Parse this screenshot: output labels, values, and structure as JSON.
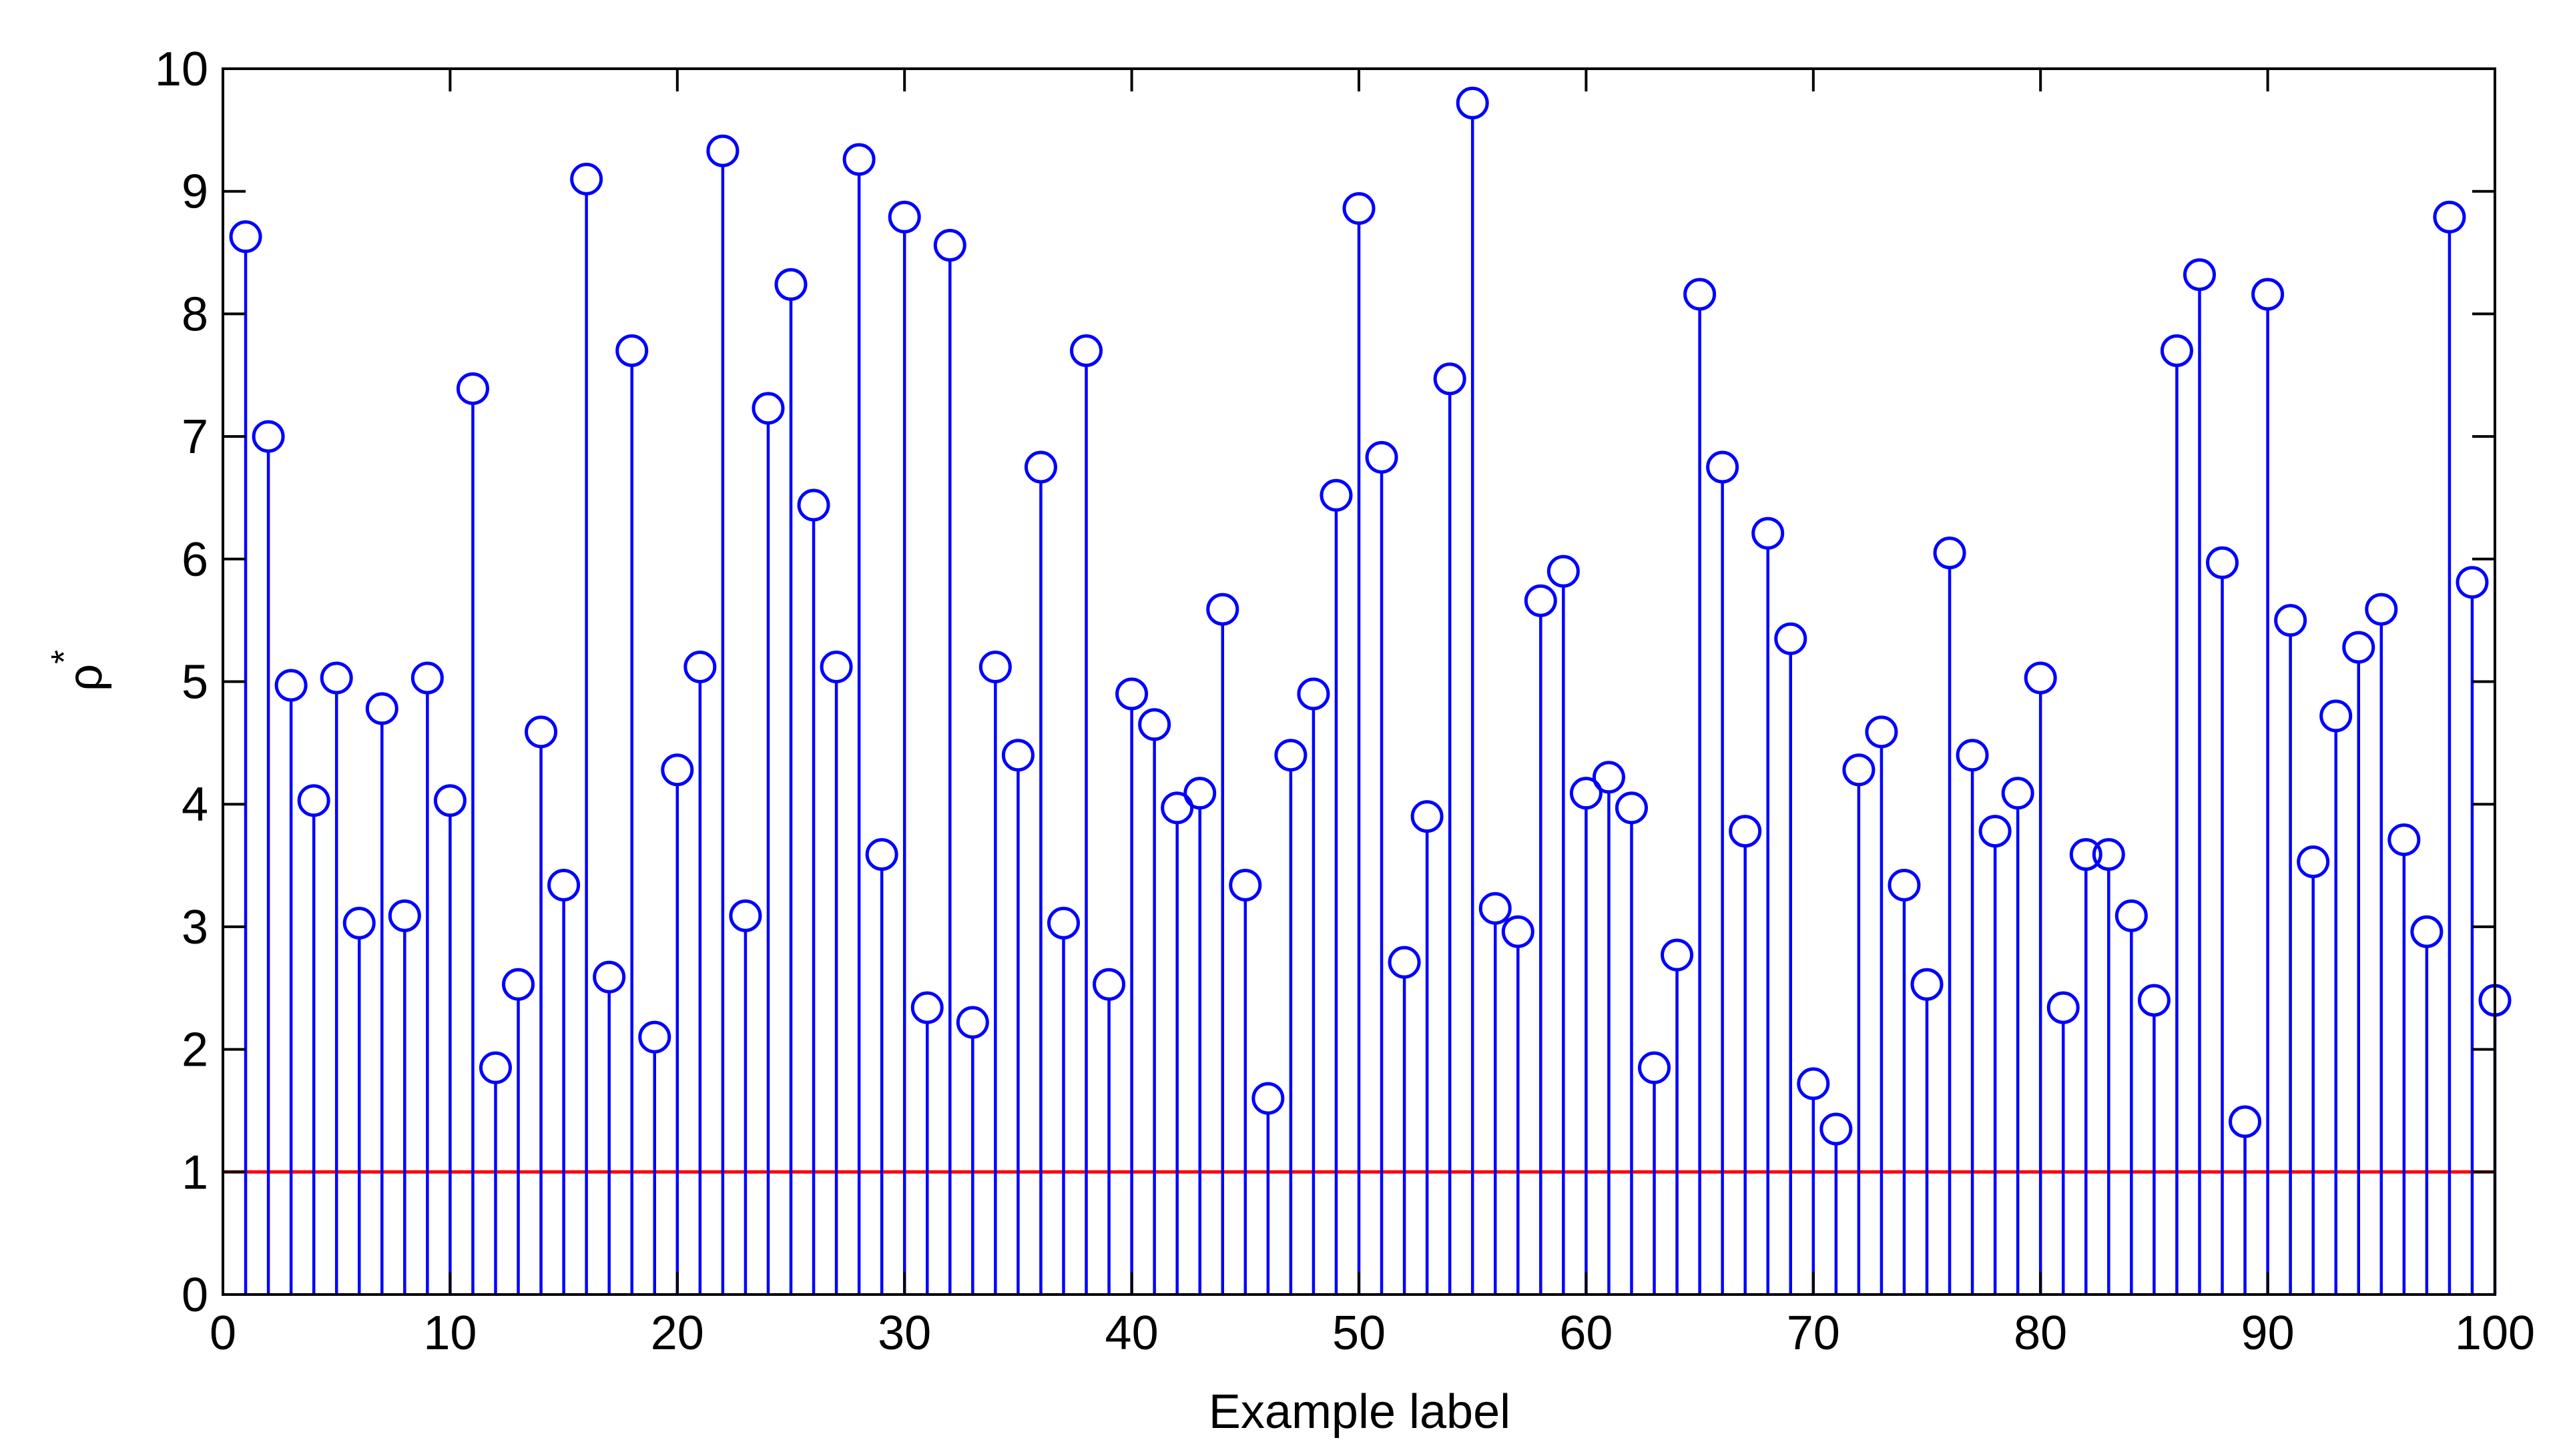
{
  "chart_data": {
    "type": "stem",
    "xlabel": "Example label",
    "ylabel": "ρ*",
    "xlim": [
      0,
      100
    ],
    "ylim": [
      0,
      10
    ],
    "xticks": [
      0,
      10,
      20,
      30,
      40,
      50,
      60,
      70,
      80,
      90,
      100
    ],
    "yticks": [
      0,
      1,
      2,
      3,
      4,
      5,
      6,
      7,
      8,
      9,
      10
    ],
    "grid": false,
    "colors": {
      "stem": "#0000ff",
      "reference_line": "#ff0000",
      "axes": "#000000"
    },
    "reference_line": {
      "y": 1
    },
    "series": [
      {
        "marker": "circle",
        "x": [
          1,
          2,
          3,
          4,
          5,
          6,
          7,
          8,
          9,
          10,
          11,
          12,
          13,
          14,
          15,
          16,
          17,
          18,
          19,
          20,
          21,
          22,
          23,
          24,
          25,
          26,
          27,
          28,
          29,
          30,
          31,
          32,
          33,
          34,
          35,
          36,
          37,
          38,
          39,
          40,
          41,
          42,
          43,
          44,
          45,
          46,
          47,
          48,
          49,
          50,
          51,
          52,
          53,
          54,
          55,
          56,
          57,
          58,
          59,
          60,
          61,
          62,
          63,
          64,
          65,
          66,
          67,
          68,
          69,
          70,
          71,
          72,
          73,
          74,
          75,
          76,
          77,
          78,
          79,
          80,
          81,
          82,
          83,
          84,
          85,
          86,
          87,
          88,
          89,
          90,
          91,
          92,
          93,
          94,
          95,
          96,
          97,
          98,
          99,
          100
        ],
        "values": [
          8.63,
          7.0,
          4.97,
          4.03,
          5.03,
          3.03,
          4.78,
          3.09,
          5.03,
          4.03,
          7.39,
          1.85,
          2.53,
          4.59,
          3.34,
          9.1,
          2.59,
          7.7,
          2.1,
          4.28,
          5.12,
          9.33,
          3.09,
          7.23,
          8.24,
          6.44,
          5.12,
          9.26,
          3.59,
          8.79,
          2.34,
          8.56,
          2.22,
          5.12,
          4.4,
          6.75,
          3.03,
          7.7,
          2.53,
          4.9,
          4.65,
          3.97,
          4.09,
          5.59,
          3.34,
          1.6,
          4.4,
          4.9,
          6.52,
          8.86,
          6.83,
          2.71,
          3.9,
          7.47,
          9.72,
          3.15,
          2.96,
          5.66,
          5.9,
          4.09,
          4.22,
          3.97,
          1.85,
          2.77,
          8.16,
          6.75,
          3.78,
          6.21,
          5.35,
          1.72,
          1.35,
          4.28,
          4.59,
          3.34,
          2.53,
          6.05,
          4.4,
          3.78,
          4.09,
          5.03,
          2.34,
          3.59,
          3.59,
          3.09,
          2.4,
          7.7,
          8.32,
          5.97,
          1.41,
          8.16,
          5.5,
          3.53,
          4.72,
          5.28,
          5.59,
          3.71,
          2.96,
          8.79,
          5.81,
          2.4
        ]
      }
    ]
  }
}
